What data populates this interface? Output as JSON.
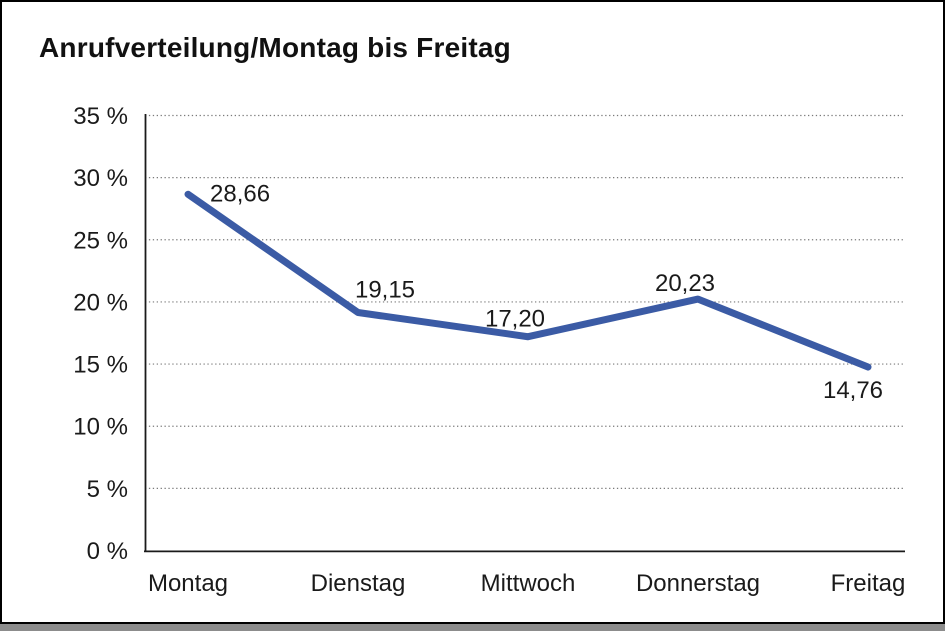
{
  "chart_data": {
    "type": "line",
    "title": "Anrufverteilung/Montag bis Freitag",
    "categories": [
      "Montag",
      "Dienstag",
      "Mittwoch",
      "Donnerstag",
      "Freitag"
    ],
    "values": [
      28.66,
      19.15,
      17.2,
      20.23,
      14.76
    ],
    "value_labels": [
      "28,66",
      "19,15",
      "17,20",
      "20,23",
      "14,76"
    ],
    "y_ticks": [
      0,
      5,
      10,
      15,
      20,
      25,
      30,
      35
    ],
    "y_tick_labels": [
      "0 %",
      "5 %",
      "10 %",
      "15 %",
      "20 %",
      "25 %",
      "30 %",
      "35 %"
    ],
    "ylim": [
      0,
      35
    ],
    "xlabel": "",
    "ylabel": "",
    "legend": "none",
    "grid": "horizontal-dotted",
    "colors": {
      "line": "#3b5ba5",
      "axis": "#1a1a1a",
      "gridline": "#7a7a7a",
      "text": "#1a1a1a",
      "frame_border": "#000000",
      "frame_shadow": "#8c8c8c",
      "background": "#ffffff"
    }
  }
}
